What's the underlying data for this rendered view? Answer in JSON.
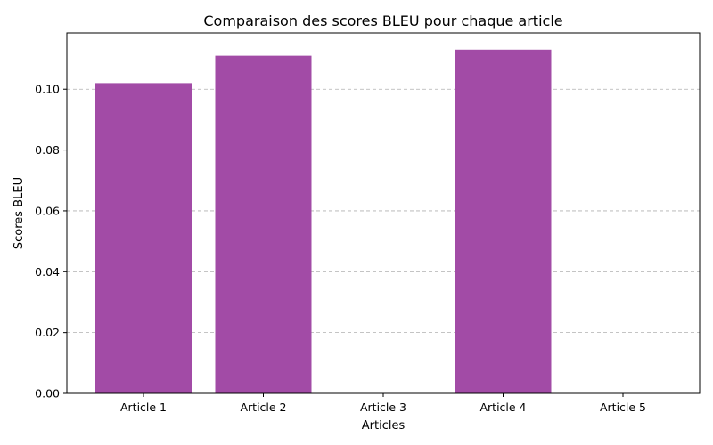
{
  "chart_data": {
    "type": "bar",
    "title": "Comparaison des scores BLEU pour chaque article",
    "xlabel": "Articles",
    "ylabel": "Scores BLEU",
    "categories": [
      "Article 1",
      "Article 2",
      "Article 3",
      "Article 4",
      "Article 5"
    ],
    "values": [
      0.102,
      0.111,
      0,
      0.113,
      0
    ],
    "ylim": [
      0,
      0.1185
    ],
    "yticks": [
      0.0,
      0.02,
      0.04,
      0.06,
      0.08,
      0.1
    ],
    "ytick_labels": [
      "0.00",
      "0.02",
      "0.04",
      "0.06",
      "0.08",
      "0.10"
    ],
    "grid": "y-dashed",
    "bar_color": "#a24ba6"
  }
}
